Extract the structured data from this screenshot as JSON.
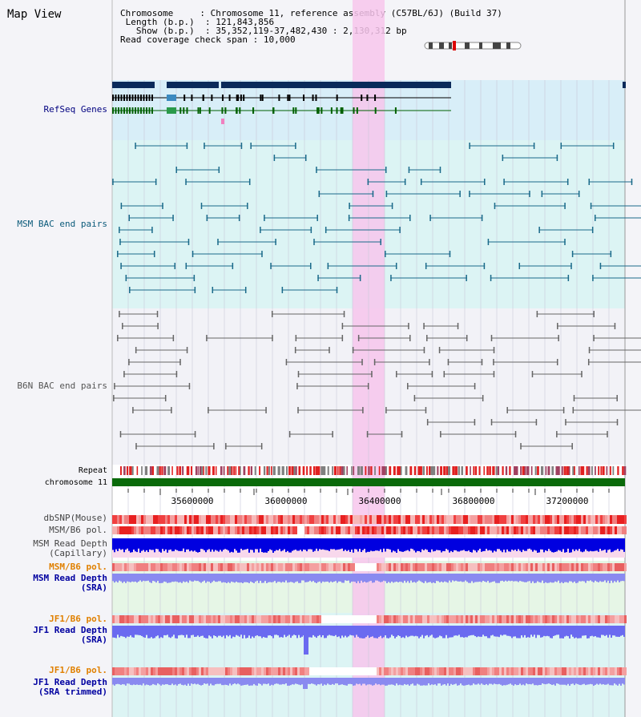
{
  "title": "Map View",
  "info": {
    "chromosome_key": "Chromosome",
    "chromosome_val": "Chromosome 11, reference assembly (C57BL/6J) (Build 37)",
    "length_key": "Length (b.p.)",
    "length_val": "121,843,856",
    "show_key": "Show (b.p.)",
    "show_val": "35,352,119-37,482,430 : 2,130,312 bp",
    "coverage_key": "Read coverage check span",
    "coverage_val": "10,000"
  },
  "tracks": {
    "refseq": "RefSeq Genes",
    "msm_bac": "MSM BAC end pairs",
    "b6n_bac": "B6N BAC end pairs",
    "repeat": "Repeat",
    "chromosome": "chromosome 11",
    "dbsnp": "dbSNP(Mouse)",
    "msm_b6_pol": "MSM/B6 pol.",
    "msm_read_depth_cap_1": "MSM Read Depth",
    "msm_read_depth_cap_2": "(Capillary)",
    "msm_b6_pol_2": "MSM/B6 pol.",
    "msm_read_depth_sra_1": "MSM Read Depth",
    "msm_read_depth_sra_2": "(SRA)",
    "jf1_b6_pol": "JF1/B6 pol.",
    "jf1_read_depth_sra_1": "JF1 Read Depth",
    "jf1_read_depth_sra_2": "(SRA)",
    "jf1_b6_pol_2": "JF1/B6 pol.",
    "jf1_read_depth_trim_1": "JF1 Read Depth",
    "jf1_read_depth_trim_2": "(SRA trimmed)"
  },
  "axis_ticks": [
    "35600000",
    "36000000",
    "36400000",
    "36800000",
    "37200000"
  ],
  "colors": {
    "refseq_label": "#000080",
    "msm_bac_label": "#0a5a7a",
    "b6n_bac_label": "#555555",
    "orange_label": "#e08000",
    "blue_label": "#0000a0",
    "highlight": "#f7c6ec",
    "refseq_bg": "#d8eef8",
    "msm_bg": "#dcf4f4",
    "b6n_bg": "#f2f2f7",
    "sra_bg": "#e6f6e6",
    "jf1_bg": "#dcf4f4"
  }
}
